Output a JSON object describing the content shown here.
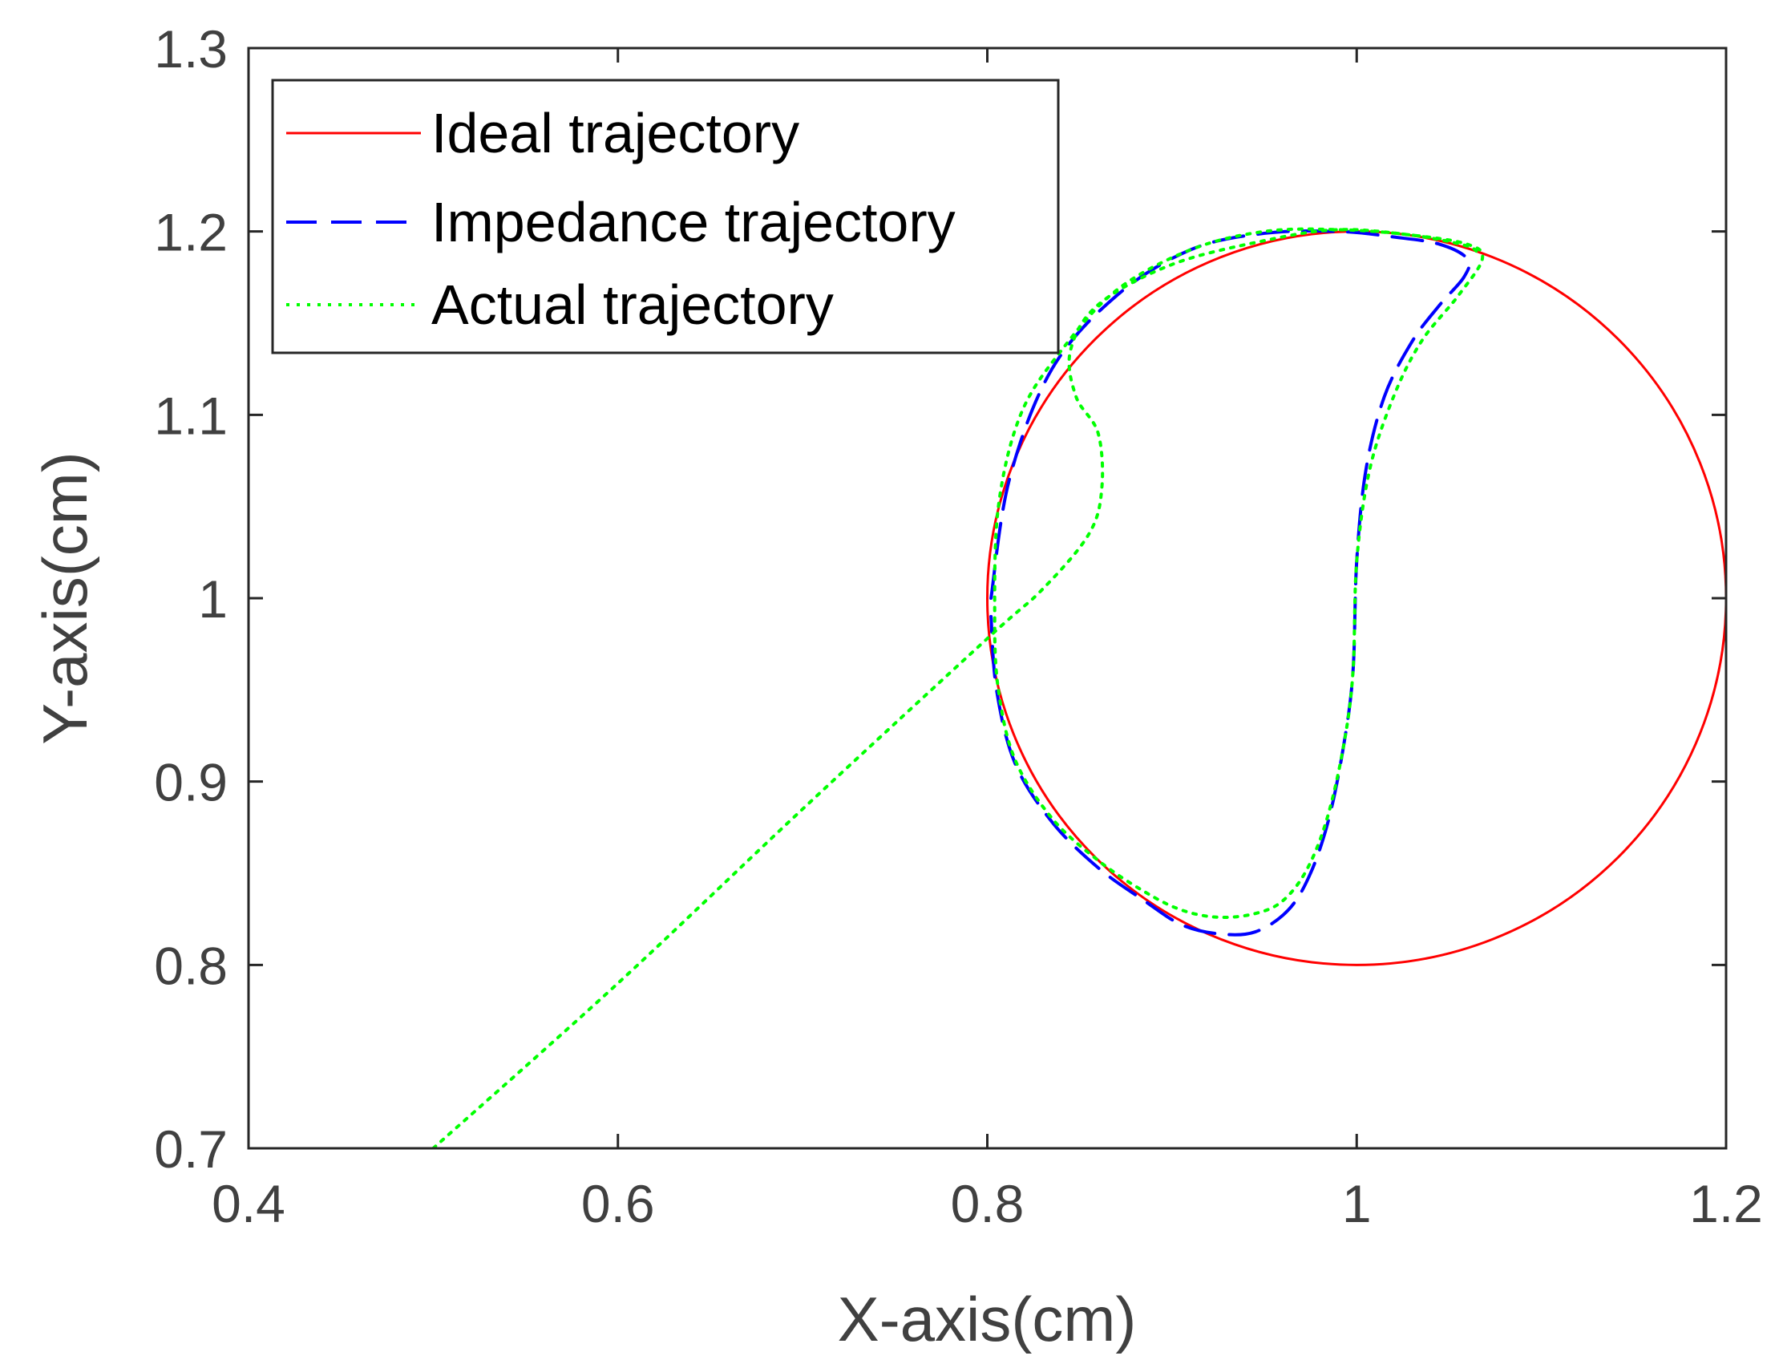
{
  "chart_data": {
    "type": "line",
    "title": "",
    "xlabel": "X-axis(cm)",
    "ylabel": "Y-axis(cm)",
    "xlim": [
      0.4,
      1.2
    ],
    "ylim": [
      0.7,
      1.3
    ],
    "xticks": [
      0.4,
      0.6,
      0.8,
      1.0,
      1.2
    ],
    "yticks": [
      0.7,
      0.8,
      0.9,
      1.0,
      1.1,
      1.2,
      1.3
    ],
    "xtick_labels": [
      "0.4",
      "0.6",
      "0.8",
      "1",
      "1.2"
    ],
    "ytick_labels": [
      "0.7",
      "0.8",
      "0.9",
      "1",
      "1.1",
      "1.2",
      "1.3"
    ],
    "grid": false,
    "legend_position": "top-left",
    "series": [
      {
        "name": "Ideal trajectory",
        "color": "#ff0000",
        "style": "solid",
        "x": [
          1.2,
          1.19,
          1.162,
          1.118,
          1.06,
          1.0,
          0.94,
          0.882,
          0.838,
          0.81,
          0.8,
          0.81,
          0.838,
          0.882,
          0.94,
          1.0,
          1.06,
          1.118,
          1.162,
          1.19,
          1.2
        ],
        "y": [
          1.0,
          1.062,
          1.118,
          1.162,
          1.19,
          1.2,
          1.19,
          1.162,
          1.118,
          1.062,
          1.0,
          0.938,
          0.882,
          0.838,
          0.81,
          0.8,
          0.81,
          0.838,
          0.882,
          0.938,
          1.0
        ]
      },
      {
        "name": "Impedance trajectory",
        "color": "#0000ff",
        "style": "dashed",
        "x": [
          0.802,
          0.812,
          0.835,
          0.87,
          0.91,
          0.95,
          0.99,
          1.02,
          1.045,
          1.06,
          1.058,
          1.045,
          1.03,
          1.015,
          1.005,
          1.0,
          0.998,
          0.993,
          0.985,
          0.975,
          0.963,
          0.945,
          0.925,
          0.905,
          0.885,
          0.86,
          0.835,
          0.815,
          0.805,
          0.802
        ],
        "y": [
          1.0,
          1.065,
          1.125,
          1.165,
          1.19,
          1.199,
          1.2,
          1.197,
          1.193,
          1.185,
          1.175,
          1.16,
          1.14,
          1.11,
          1.07,
          1.02,
          0.96,
          0.92,
          0.88,
          0.85,
          0.83,
          0.818,
          0.817,
          0.822,
          0.835,
          0.853,
          0.878,
          0.91,
          0.95,
          0.99
        ]
      },
      {
        "name": "Actual trajectory",
        "color": "#00ff00",
        "style": "dotted",
        "x": [
          0.5,
          0.6,
          0.7,
          0.8,
          0.83,
          0.855,
          0.862,
          0.86,
          0.848,
          0.845,
          0.86,
          0.9,
          0.95,
          0.99,
          1.03,
          1.06,
          1.068,
          1.055,
          1.035,
          1.02,
          1.007,
          1.0,
          0.998,
          0.993,
          0.984,
          0.973,
          0.96,
          0.945,
          0.925,
          0.905,
          0.885,
          0.86,
          0.835,
          0.815,
          0.806,
          0.804,
          0.806,
          0.818,
          0.84,
          0.87,
          0.91,
          0.95,
          0.99,
          1.03,
          1.06,
          1.066
        ],
        "y": [
          0.7,
          0.79,
          0.885,
          0.978,
          1.005,
          1.035,
          1.06,
          1.09,
          1.11,
          1.135,
          1.16,
          1.182,
          1.195,
          1.201,
          1.198,
          1.193,
          1.185,
          1.165,
          1.14,
          1.11,
          1.07,
          1.02,
          0.96,
          0.92,
          0.88,
          0.852,
          0.835,
          0.828,
          0.826,
          0.83,
          0.84,
          0.857,
          0.88,
          0.912,
          0.95,
          0.99,
          1.05,
          1.1,
          1.135,
          1.168,
          1.19,
          1.2,
          1.201,
          1.198,
          1.192,
          1.187
        ]
      }
    ]
  }
}
